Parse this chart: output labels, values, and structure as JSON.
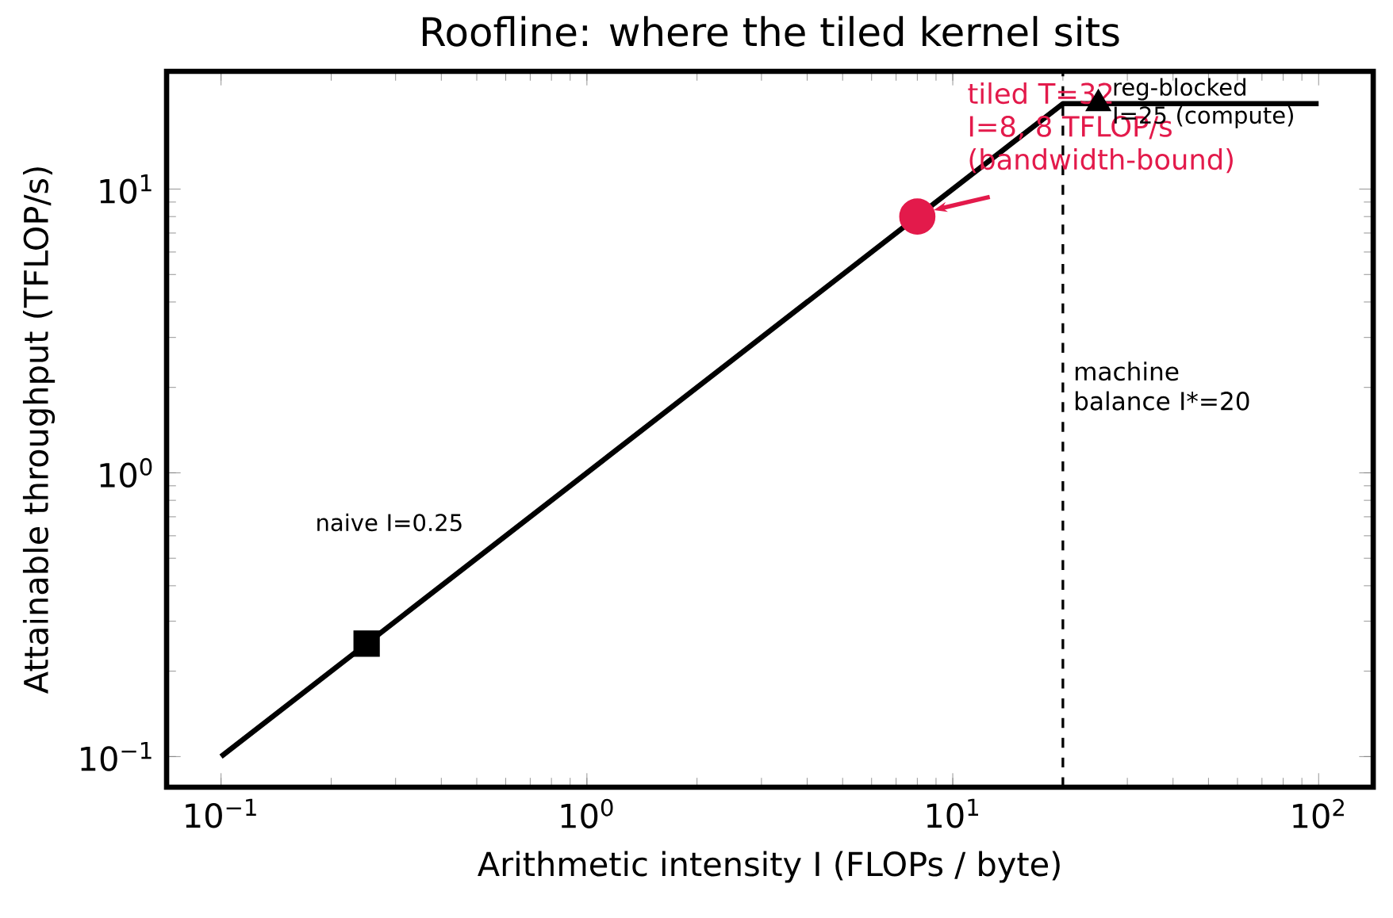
{
  "chart_data": {
    "type": "line",
    "title": "Roofline: where the tiled kernel sits",
    "xlabel": "Arithmetic intensity I (FLOPs / byte)",
    "ylabel": "Attainable throughput (TFLOP/s)",
    "log": "xy",
    "line_style": "solid",
    "xlim": [
      0.071,
      141
    ],
    "ylim": [
      0.078,
      26
    ],
    "xticks": [
      {
        "value": 0.1,
        "label": "10$^{−1}$"
      },
      {
        "value": 1,
        "label": "10$^{0}$"
      },
      {
        "value": 10,
        "label": "10$^{1}$"
      },
      {
        "value": 100,
        "label": "10$^{2}$"
      }
    ],
    "yticks": [
      {
        "value": 0.1,
        "label": "10$^{−1}$"
      },
      {
        "value": 1,
        "label": "10$^{0}$"
      },
      {
        "value": 10,
        "label": "10$^{1}$"
      }
    ],
    "series": [
      {
        "color": "#000000",
        "marker": "none",
        "x": [
          0.1,
          20,
          100
        ],
        "values": [
          0.1,
          20,
          20
        ]
      },
      {
        "type": "scatter",
        "color": "#000000",
        "marker": "square",
        "x": [
          0.25
        ],
        "values": [
          0.25
        ]
      },
      {
        "type": "scatter",
        "color": "#e31a4b",
        "marker": "circle",
        "x": [
          8
        ],
        "values": [
          8
        ]
      },
      {
        "type": "scatter",
        "color": "#000000",
        "marker": "triangle",
        "x": [
          25
        ],
        "values": [
          20
        ]
      }
    ],
    "ref_lines": [
      {
        "axis": "x",
        "value": 20,
        "label": "machine balance I*=20",
        "color": "#000000",
        "line_style": "dashed"
      }
    ],
    "annotations": [
      "naive I=0.25",
      {
        "text": "tiled T=32 I=8, 8 TFLOP/s (bandwidth-bound)",
        "x": 8,
        "y": 8
      },
      {
        "text": "reg-blocked I=25 (compute)",
        "x": 25,
        "y": 20
      }
    ]
  }
}
